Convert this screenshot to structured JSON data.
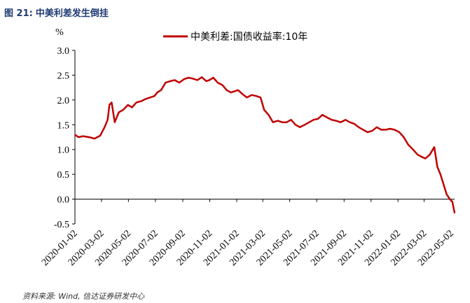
{
  "figure": {
    "label": "图 21:",
    "title": "中美利差发生倒挂",
    "source": "资料来源: Wind, 信达证券研发中心"
  },
  "colors": {
    "series": "#c00000",
    "axis": "#000000",
    "title": "#1f3b73"
  },
  "chart_data": {
    "type": "line",
    "title": "中美利差发生倒挂",
    "ylabel": "%",
    "xlabel": "",
    "ylim": [
      -0.5,
      3.0
    ],
    "yticks": [
      "3.0",
      "2.5",
      "2.0",
      "1.5",
      "1.0",
      "0.5",
      "0.0",
      "-0.5"
    ],
    "xlim": [
      "2020-01-02",
      "2022-05-10"
    ],
    "xticks": [
      "2020-01-02",
      "2020-03-02",
      "2020-05-02",
      "2020-07-02",
      "2020-09-02",
      "2020-11-02",
      "2021-01-02",
      "2021-03-02",
      "2021-05-02",
      "2021-07-02",
      "2021-09-02",
      "2021-11-02",
      "2022-01-02",
      "2022-03-02",
      "2022-05-02"
    ],
    "grid": false,
    "legend_position": "top",
    "series": [
      {
        "name": "中美利差:国债收益率:10年",
        "x": [
          "2020-01-02",
          "2020-01-10",
          "2020-01-20",
          "2020-02-03",
          "2020-02-15",
          "2020-02-28",
          "2020-03-09",
          "2020-03-16",
          "2020-03-20",
          "2020-03-25",
          "2020-04-01",
          "2020-04-10",
          "2020-04-20",
          "2020-05-01",
          "2020-05-10",
          "2020-05-20",
          "2020-06-01",
          "2020-06-10",
          "2020-06-20",
          "2020-06-30",
          "2020-07-06",
          "2020-07-15",
          "2020-07-25",
          "2020-08-05",
          "2020-08-15",
          "2020-08-25",
          "2020-09-05",
          "2020-09-15",
          "2020-09-25",
          "2020-10-05",
          "2020-10-15",
          "2020-10-25",
          "2020-11-01",
          "2020-11-10",
          "2020-11-20",
          "2020-12-01",
          "2020-12-10",
          "2020-12-20",
          "2021-01-05",
          "2021-01-15",
          "2021-01-25",
          "2021-02-05",
          "2021-02-15",
          "2021-02-25",
          "2021-03-05",
          "2021-03-15",
          "2021-03-25",
          "2021-04-05",
          "2021-04-15",
          "2021-04-25",
          "2021-05-05",
          "2021-05-15",
          "2021-05-25",
          "2021-06-05",
          "2021-06-15",
          "2021-06-25",
          "2021-07-05",
          "2021-07-15",
          "2021-07-25",
          "2021-08-05",
          "2021-08-15",
          "2021-08-25",
          "2021-09-05",
          "2021-09-15",
          "2021-09-25",
          "2021-10-05",
          "2021-10-15",
          "2021-10-25",
          "2021-11-05",
          "2021-11-15",
          "2021-11-25",
          "2021-12-05",
          "2021-12-15",
          "2021-12-25",
          "2022-01-05",
          "2022-01-15",
          "2022-01-25",
          "2022-02-05",
          "2022-02-15",
          "2022-02-25",
          "2022-03-05",
          "2022-03-15",
          "2022-03-25",
          "2022-04-01",
          "2022-04-08",
          "2022-04-15",
          "2022-04-22",
          "2022-04-29",
          "2022-05-05",
          "2022-05-10"
        ],
        "y": [
          1.3,
          1.25,
          1.27,
          1.25,
          1.22,
          1.28,
          1.45,
          1.6,
          1.9,
          1.95,
          1.55,
          1.75,
          1.8,
          1.9,
          1.85,
          1.95,
          1.98,
          2.02,
          2.05,
          2.08,
          2.15,
          2.2,
          2.35,
          2.38,
          2.4,
          2.35,
          2.42,
          2.45,
          2.43,
          2.4,
          2.46,
          2.38,
          2.4,
          2.45,
          2.35,
          2.3,
          2.2,
          2.15,
          2.2,
          2.12,
          2.05,
          2.1,
          2.08,
          2.05,
          1.8,
          1.7,
          1.55,
          1.58,
          1.55,
          1.55,
          1.6,
          1.5,
          1.45,
          1.5,
          1.55,
          1.6,
          1.62,
          1.7,
          1.65,
          1.6,
          1.58,
          1.55,
          1.6,
          1.55,
          1.52,
          1.45,
          1.4,
          1.35,
          1.38,
          1.45,
          1.4,
          1.4,
          1.42,
          1.4,
          1.35,
          1.25,
          1.1,
          1.0,
          0.9,
          0.85,
          0.82,
          0.9,
          1.05,
          0.65,
          0.5,
          0.3,
          0.1,
          0.0,
          -0.05,
          -0.28
        ]
      }
    ]
  }
}
